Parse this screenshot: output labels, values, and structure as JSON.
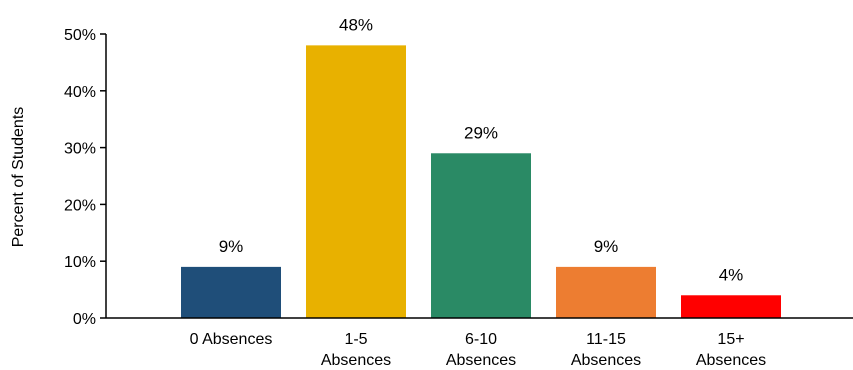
{
  "chart_data": {
    "type": "bar",
    "title": "",
    "xlabel": "",
    "ylabel": "Percent of Students",
    "ylim": [
      0,
      50
    ],
    "ytick_values": [
      0,
      10,
      20,
      30,
      40,
      50
    ],
    "ytick_labels": [
      "0%",
      "10%",
      "20%",
      "30%",
      "40%",
      "50%"
    ],
    "categories": [
      [
        "0 Absences"
      ],
      [
        "1-5",
        "Absences"
      ],
      [
        "6-10",
        "Absences"
      ],
      [
        "11-15",
        "Absences"
      ],
      [
        "15+",
        "Absences"
      ]
    ],
    "values": [
      9,
      48,
      29,
      9,
      4
    ],
    "data_labels": [
      "9%",
      "48%",
      "29%",
      "9%",
      "4%"
    ],
    "colors": [
      "#1f4e79",
      "#e8b100",
      "#2a8a65",
      "#ed7d31",
      "#ff0000"
    ],
    "grid": false,
    "legend": "none"
  }
}
